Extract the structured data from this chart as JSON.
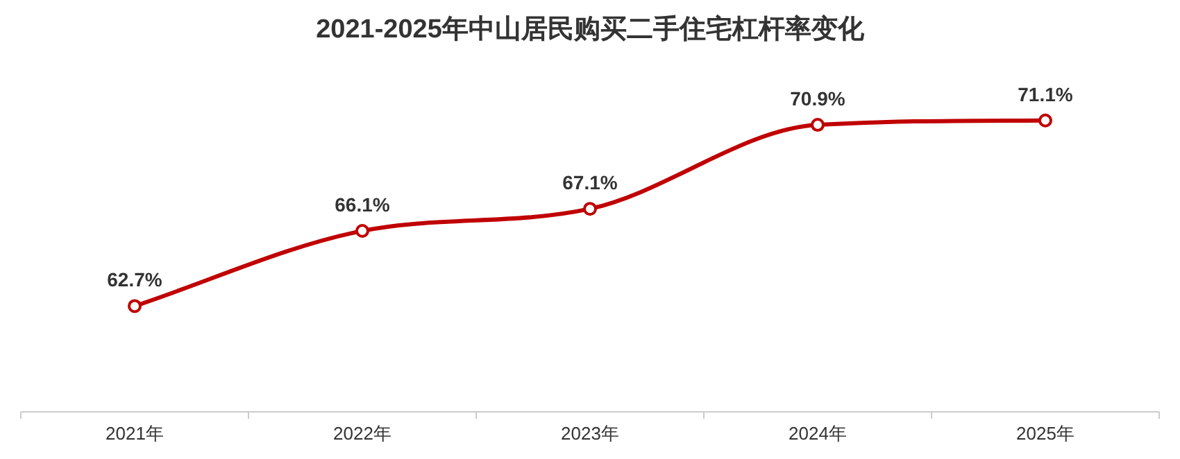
{
  "chart_data": {
    "type": "line",
    "title": "2021-2025年中山居民购买二手住宅杠杆率变化",
    "categories": [
      "2021年",
      "2022年",
      "2023年",
      "2024年",
      "2025年"
    ],
    "series": [
      {
        "color": "#c00000",
        "values": [
          62.7,
          66.1,
          67.1,
          70.9,
          71.1
        ],
        "value_labels": [
          "62.7%",
          "66.1%",
          "67.1%",
          "70.9%",
          "71.1%"
        ]
      }
    ],
    "marker": "circle",
    "line_style": "solid",
    "tick_labels": "x"
  }
}
